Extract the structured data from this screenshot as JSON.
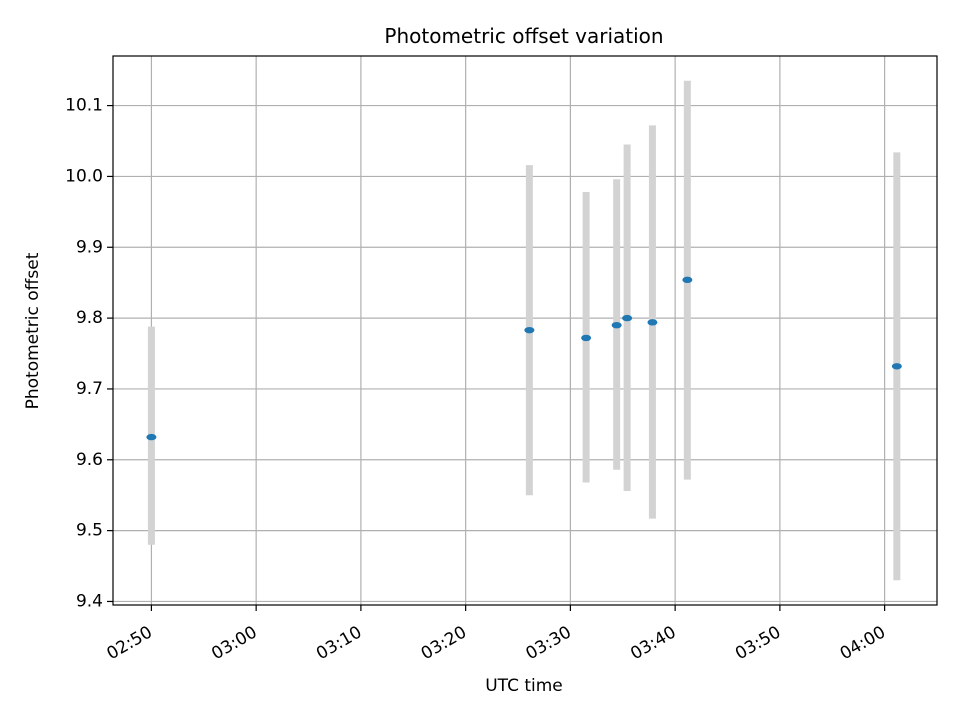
{
  "chart_data": {
    "type": "scatter",
    "title": "Photometric offset variation",
    "xlabel": "UTC time",
    "ylabel": "Photometric offset",
    "x_ticks": [
      "02:50",
      "03:00",
      "03:10",
      "03:20",
      "03:30",
      "03:40",
      "03:50",
      "04:00"
    ],
    "y_ticks": [
      "9.4",
      "9.5",
      "9.6",
      "9.7",
      "9.8",
      "9.9",
      "10.0",
      "10.1"
    ],
    "xlim": [
      "02:46:20",
      "04:05:00"
    ],
    "ylim": [
      9.395,
      10.17
    ],
    "grid": true,
    "colors": {
      "marker": "#1f77b4",
      "errorbar": "#d3d3d3",
      "grid": "#b0b0b0"
    },
    "points": [
      {
        "time": "02:50:00",
        "value": 9.632,
        "lower": 9.48,
        "upper": 9.788
      },
      {
        "time": "03:26:05",
        "value": 9.783,
        "lower": 9.55,
        "upper": 10.016
      },
      {
        "time": "03:31:30",
        "value": 9.772,
        "lower": 9.568,
        "upper": 9.978
      },
      {
        "time": "03:34:25",
        "value": 9.79,
        "lower": 9.586,
        "upper": 9.996
      },
      {
        "time": "03:35:25",
        "value": 9.8,
        "lower": 9.556,
        "upper": 10.045
      },
      {
        "time": "03:37:50",
        "value": 9.794,
        "lower": 9.517,
        "upper": 10.072
      },
      {
        "time": "03:41:10",
        "value": 9.854,
        "lower": 9.572,
        "upper": 10.135
      },
      {
        "time": "04:01:10",
        "value": 9.732,
        "lower": 9.43,
        "upper": 10.034
      }
    ]
  }
}
